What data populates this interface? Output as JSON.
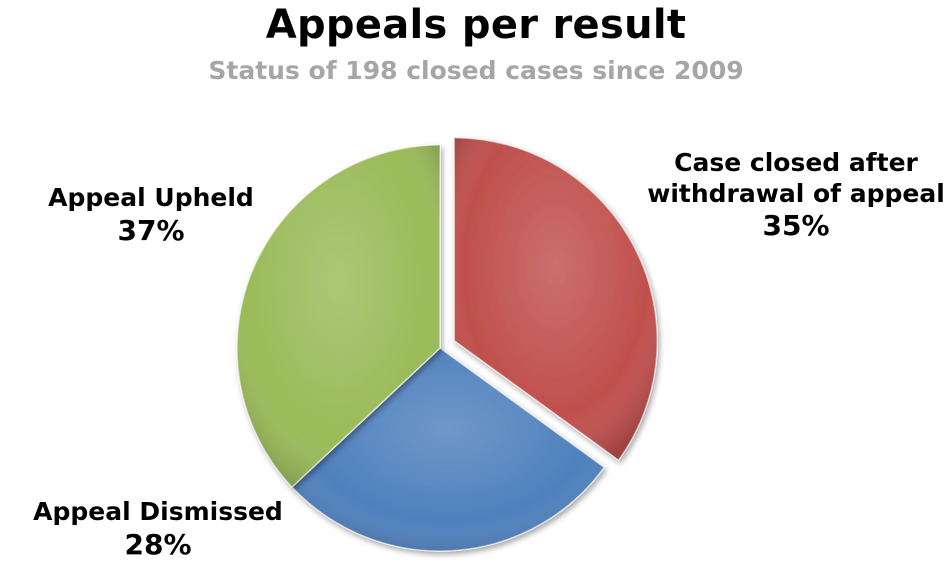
{
  "chart_data": {
    "type": "pie",
    "title": "Appeals per result",
    "subtitle": "Status of 198 closed cases since 2009",
    "slices": [
      {
        "label": "Case closed after withdrawal of appeal",
        "label_lines": [
          "Case closed after",
          "withdrawal of appeal"
        ],
        "value": 35,
        "value_label": "35%",
        "color": "#c0504d",
        "exploded": true
      },
      {
        "label": "Appeal Dismissed",
        "label_lines": [
          "Appeal Dismissed"
        ],
        "value": 28,
        "value_label": "28%",
        "color": "#4f81bd",
        "exploded": false
      },
      {
        "label": "Appeal Upheld",
        "label_lines": [
          "Appeal Upheld"
        ],
        "value": 37,
        "value_label": "37%",
        "color": "#9bbb59",
        "exploded": false
      }
    ],
    "start_angle": "12 o'clock",
    "direction": "clockwise",
    "legend": "none",
    "data_labels": "outside"
  }
}
